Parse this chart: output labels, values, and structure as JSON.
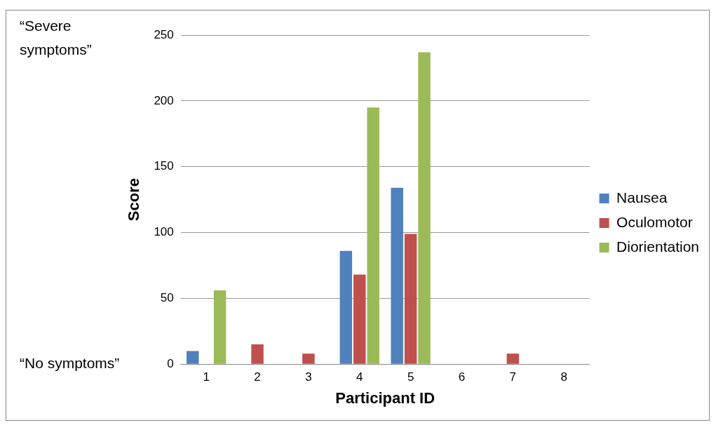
{
  "chart_data": {
    "type": "bar",
    "xlabel": "Participant ID",
    "ylabel": "Score",
    "categories": [
      "1",
      "2",
      "3",
      "4",
      "5",
      "6",
      "7",
      "8"
    ],
    "series": [
      {
        "name": "Nausea",
        "color": "#4f81bd",
        "values": [
          10,
          0,
          0,
          86,
          134,
          0,
          0,
          0
        ]
      },
      {
        "name": "Oculomotor",
        "color": "#c0504d",
        "values": [
          0,
          15,
          8,
          68,
          99,
          0,
          8,
          0
        ]
      },
      {
        "name": "Diorientation",
        "color": "#9bbb59",
        "values": [
          56,
          0,
          0,
          195,
          237,
          0,
          0,
          0
        ]
      }
    ],
    "ylim": [
      0,
      250
    ],
    "yticks": [
      0,
      50,
      100,
      150,
      200,
      250
    ],
    "grid": "y",
    "legend": "right",
    "annotations": [
      "“Severe symptoms”",
      "“No symptoms”"
    ]
  }
}
